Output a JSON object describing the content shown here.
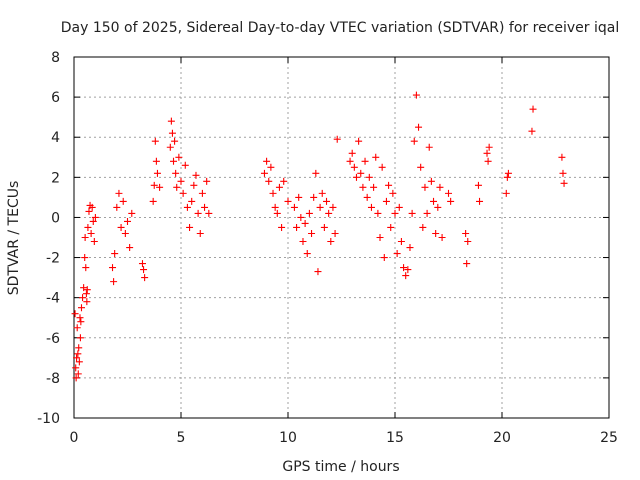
{
  "chart_data": {
    "type": "scatter",
    "title": "Day 150 of 2025, Sidereal Day-to-day VTEC variation (SDTVAR) for receiver iqal",
    "xlabel": "GPS time / hours",
    "ylabel": "SDTVAR / TECUs",
    "xlim": [
      0,
      25
    ],
    "ylim": [
      -10,
      8
    ],
    "xticks": [
      0,
      5,
      10,
      15,
      20,
      25
    ],
    "yticks": [
      -10,
      -8,
      -6,
      -4,
      -2,
      0,
      2,
      4,
      6,
      8
    ],
    "xtick_labels": [
      "0",
      "5",
      "10",
      "15",
      "20",
      "25"
    ],
    "ytick_labels": [
      "-10",
      "-8",
      "-6",
      "-4",
      "-2",
      "0",
      "2",
      "4",
      "6",
      "8"
    ],
    "grid": true,
    "marker": "+",
    "marker_color": "#ff0000",
    "series": [
      {
        "name": "SDTVAR",
        "x": [
          0.05,
          0.08,
          0.1,
          0.12,
          0.15,
          0.18,
          0.2,
          0.22,
          0.25,
          0.28,
          0.3,
          0.32,
          0.35,
          0.4,
          0.45,
          0.5,
          0.52,
          0.55,
          0.58,
          0.6,
          0.62,
          0.65,
          0.7,
          0.75,
          0.8,
          0.85,
          0.9,
          0.95,
          1.0,
          1.8,
          1.85,
          1.9,
          2.0,
          2.1,
          2.2,
          2.3,
          2.4,
          2.5,
          2.6,
          2.7,
          3.2,
          3.25,
          3.3,
          3.7,
          3.75,
          3.8,
          3.85,
          3.9,
          4.0,
          4.5,
          4.55,
          4.6,
          4.65,
          4.7,
          4.75,
          4.8,
          4.9,
          5.0,
          5.1,
          5.2,
          5.3,
          5.4,
          5.5,
          5.6,
          5.7,
          5.8,
          5.9,
          6.0,
          6.1,
          6.2,
          6.3,
          8.9,
          9.0,
          9.1,
          9.2,
          9.3,
          9.4,
          9.5,
          9.6,
          9.7,
          9.8,
          10.0,
          10.3,
          10.4,
          10.5,
          10.6,
          10.7,
          10.8,
          10.9,
          11.0,
          11.1,
          11.2,
          11.3,
          11.4,
          11.5,
          11.6,
          11.7,
          11.8,
          11.9,
          12.0,
          12.1,
          12.2,
          12.3,
          12.9,
          13.0,
          13.1,
          13.2,
          13.3,
          13.4,
          13.5,
          13.6,
          13.7,
          13.8,
          13.9,
          14.0,
          14.1,
          14.2,
          14.3,
          14.4,
          14.5,
          14.6,
          14.7,
          14.8,
          14.9,
          15.0,
          15.1,
          15.2,
          15.3,
          15.4,
          15.5,
          15.6,
          15.7,
          15.8,
          15.9,
          16.0,
          16.1,
          16.2,
          16.3,
          16.4,
          16.5,
          16.6,
          16.7,
          16.8,
          16.9,
          17.0,
          17.1,
          17.2,
          17.5,
          17.6,
          18.3,
          18.35,
          18.4,
          18.9,
          18.95,
          19.3,
          19.35,
          19.4,
          20.2,
          20.25,
          20.3,
          21.4,
          21.45,
          22.8,
          22.85,
          22.9
        ],
        "y": [
          -4.8,
          -7.5,
          -8.0,
          -7.0,
          -5.5,
          -6.8,
          -7.8,
          -6.5,
          -7.2,
          -5.0,
          -6.0,
          -5.2,
          -4.5,
          -4.0,
          -3.5,
          -2.0,
          -1.0,
          -2.5,
          -3.8,
          -4.2,
          -3.6,
          -0.5,
          0.3,
          0.6,
          -0.8,
          0.5,
          -0.2,
          -1.2,
          0.0,
          -2.5,
          -3.2,
          -1.8,
          0.5,
          1.2,
          -0.5,
          0.8,
          -0.8,
          -0.2,
          -1.5,
          0.2,
          -2.3,
          -2.6,
          -3.0,
          0.8,
          1.6,
          3.8,
          2.8,
          2.2,
          1.5,
          3.5,
          4.8,
          4.2,
          2.8,
          3.8,
          2.2,
          1.5,
          3.0,
          1.8,
          1.2,
          2.6,
          0.5,
          -0.5,
          0.8,
          1.6,
          2.1,
          0.2,
          -0.8,
          1.2,
          0.5,
          1.8,
          0.2,
          2.2,
          2.8,
          1.8,
          2.5,
          1.2,
          0.5,
          0.2,
          1.5,
          -0.5,
          1.8,
          0.8,
          0.5,
          -0.5,
          1.0,
          0.0,
          -1.2,
          -0.3,
          -1.8,
          0.2,
          -0.8,
          1.0,
          2.2,
          -2.7,
          0.5,
          1.2,
          -0.5,
          0.8,
          0.2,
          -1.2,
          0.5,
          -0.8,
          3.9,
          2.8,
          3.2,
          2.5,
          2.0,
          3.8,
          2.2,
          1.5,
          2.8,
          1.0,
          2.0,
          0.5,
          1.5,
          3.0,
          0.2,
          -1.0,
          2.5,
          -2.0,
          0.8,
          1.6,
          -0.5,
          1.2,
          0.2,
          -1.8,
          0.5,
          -1.2,
          -2.5,
          -2.9,
          -2.6,
          -1.5,
          0.2,
          3.8,
          6.1,
          4.5,
          2.5,
          -0.5,
          1.5,
          0.2,
          3.5,
          1.8,
          0.8,
          -0.8,
          0.5,
          1.5,
          -1.0,
          1.2,
          0.8,
          -0.8,
          -2.3,
          -1.2,
          1.6,
          0.8,
          3.2,
          2.8,
          3.5,
          1.2,
          2.0,
          2.2,
          4.3,
          5.4,
          3.0,
          2.2,
          1.7
        ]
      }
    ]
  }
}
